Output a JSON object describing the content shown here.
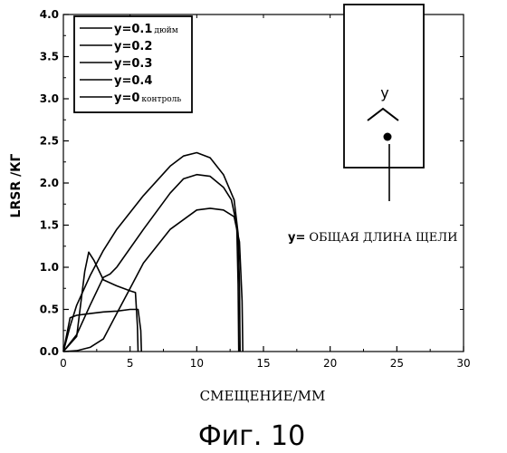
{
  "chart_data": {
    "type": "line",
    "xlabel": "СМЕЩЕНИЕ/ММ",
    "ylabel": "LRSR /КГ",
    "xlim": [
      0,
      30
    ],
    "ylim": [
      0,
      4
    ],
    "xticks": [
      "0",
      "5",
      "10",
      "15",
      "20",
      "25",
      "30"
    ],
    "yticks": [
      "0.0",
      "0.5",
      "1.0",
      "1.5",
      "2.0",
      "2.5",
      "3.0",
      "3.5",
      "4.0"
    ],
    "grid": false,
    "legend_position": "top-left",
    "series": [
      {
        "name": "y=0.1",
        "name_suffix": "дюйм",
        "points": [
          [
            0,
            0
          ],
          [
            1,
            0.18
          ],
          [
            1.6,
            0.95
          ],
          [
            1.9,
            1.18
          ],
          [
            2.3,
            1.08
          ],
          [
            3,
            0.85
          ],
          [
            4,
            0.78
          ],
          [
            5,
            0.72
          ],
          [
            5.4,
            0.7
          ],
          [
            5.55,
            0.3
          ],
          [
            5.6,
            0
          ]
        ]
      },
      {
        "name": "y=0.2",
        "name_suffix": "",
        "points": [
          [
            0,
            0
          ],
          [
            0.5,
            0.4
          ],
          [
            1,
            0.43
          ],
          [
            2,
            0.45
          ],
          [
            3,
            0.47
          ],
          [
            4,
            0.48
          ],
          [
            5,
            0.5
          ],
          [
            5.6,
            0.5
          ],
          [
            5.8,
            0.25
          ],
          [
            5.85,
            0
          ]
        ]
      },
      {
        "name": "y=0.3",
        "name_suffix": "",
        "points": [
          [
            0,
            0
          ],
          [
            1,
            0.2
          ],
          [
            2,
            0.55
          ],
          [
            3,
            0.88
          ],
          [
            3.5,
            0.92
          ],
          [
            4,
            1.0
          ],
          [
            6,
            1.45
          ],
          [
            8,
            1.88
          ],
          [
            9,
            2.05
          ],
          [
            10,
            2.1
          ],
          [
            11,
            2.08
          ],
          [
            12,
            1.95
          ],
          [
            12.6,
            1.8
          ],
          [
            13,
            1.5
          ],
          [
            13.1,
            0.8
          ],
          [
            13.15,
            0
          ]
        ]
      },
      {
        "name": "y=0.4",
        "name_suffix": "",
        "points": [
          [
            0,
            0
          ],
          [
            1,
            0.01
          ],
          [
            2,
            0.05
          ],
          [
            3,
            0.15
          ],
          [
            4,
            0.45
          ],
          [
            5,
            0.75
          ],
          [
            6,
            1.05
          ],
          [
            8,
            1.45
          ],
          [
            10,
            1.68
          ],
          [
            11,
            1.7
          ],
          [
            12,
            1.68
          ],
          [
            12.8,
            1.6
          ],
          [
            13.2,
            1.3
          ],
          [
            13.4,
            0.6
          ],
          [
            13.45,
            0
          ]
        ]
      },
      {
        "name": "y=0",
        "name_suffix": "контроль",
        "points": [
          [
            0,
            0
          ],
          [
            0.5,
            0.3
          ],
          [
            1,
            0.55
          ],
          [
            2,
            0.9
          ],
          [
            3,
            1.2
          ],
          [
            4,
            1.45
          ],
          [
            6,
            1.85
          ],
          [
            8,
            2.2
          ],
          [
            9,
            2.32
          ],
          [
            10,
            2.36
          ],
          [
            11,
            2.3
          ],
          [
            12,
            2.1
          ],
          [
            12.8,
            1.8
          ],
          [
            13.1,
            1.4
          ],
          [
            13.2,
            0.8
          ],
          [
            13.25,
            0
          ]
        ]
      }
    ]
  },
  "inset": {
    "top_label": "y",
    "caption_prefix": "y=",
    "caption_text": "ОБЩАЯ ДЛИНА ЩЕЛИ"
  },
  "figure_caption": "Фиг. 10"
}
